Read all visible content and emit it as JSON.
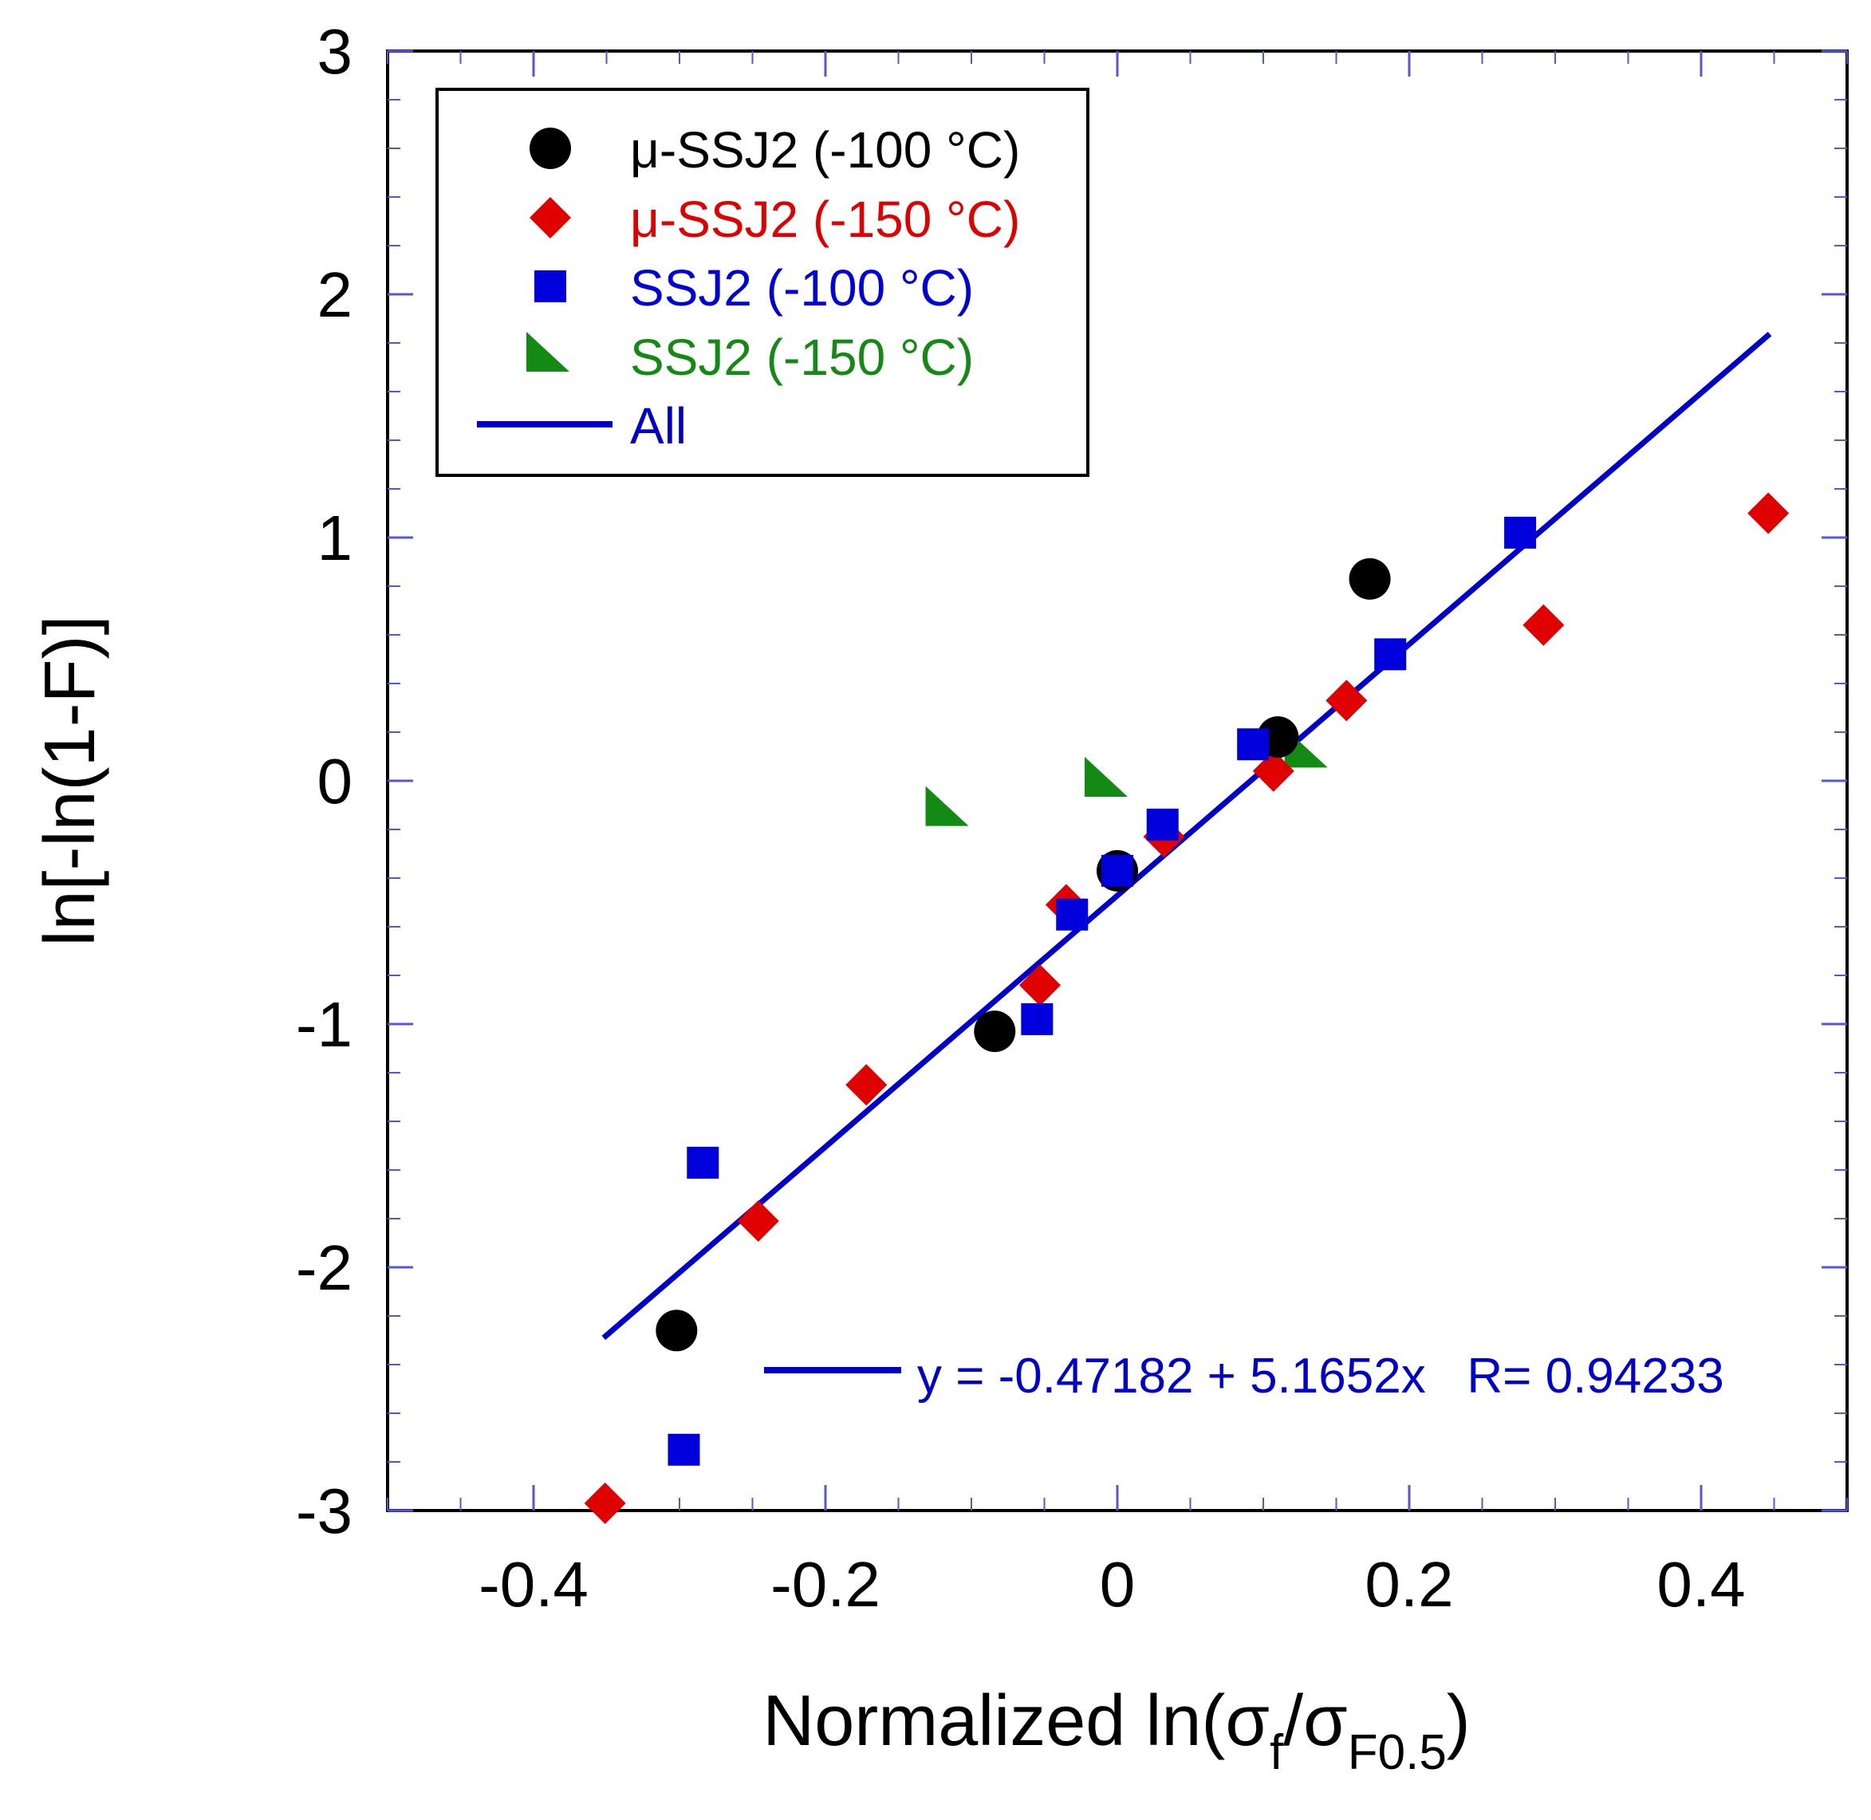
{
  "chart_data": {
    "type": "scatter",
    "xlabel": {
      "main": "Normalized ln(σ",
      "sub1": "f",
      "mid": "/σ",
      "sub2": "F0.5",
      "end": ")"
    },
    "ylabel": "ln[-ln(1-F)]",
    "xlim": [
      -0.5,
      0.5
    ],
    "ylim": [
      -3,
      3
    ],
    "x_ticks": [
      -0.4,
      -0.2,
      0,
      0.2,
      0.4
    ],
    "x_tick_labels": [
      "-0.4",
      "-0.2",
      "0",
      "0.2",
      "0.4"
    ],
    "y_ticks": [
      3,
      2,
      1,
      0,
      -1,
      -2,
      -3
    ],
    "y_tick_labels": [
      "3",
      "2",
      "1",
      "0",
      "-1",
      "-2",
      "-3"
    ],
    "grid": false,
    "legend_position": "top-left",
    "series": [
      {
        "name": "μ-SSJ2 (-100 °C)",
        "marker": "circle",
        "color": "#000000",
        "points": [
          {
            "x": -0.302,
            "y": -2.26
          },
          {
            "x": -0.084,
            "y": -1.03
          },
          {
            "x": 0.0,
            "y": -0.37
          },
          {
            "x": 0.11,
            "y": 0.18
          },
          {
            "x": 0.173,
            "y": 0.83
          }
        ]
      },
      {
        "name": "μ-SSJ2 (-150 °C)",
        "marker": "diamond",
        "color": "#e00000",
        "points": [
          {
            "x": -0.351,
            "y": -2.97
          },
          {
            "x": -0.246,
            "y": -1.81
          },
          {
            "x": -0.172,
            "y": -1.25
          },
          {
            "x": -0.053,
            "y": -0.84
          },
          {
            "x": -0.035,
            "y": -0.51
          },
          {
            "x": 0.0,
            "y": -0.37
          },
          {
            "x": 0.032,
            "y": -0.23
          },
          {
            "x": 0.107,
            "y": 0.04
          },
          {
            "x": 0.157,
            "y": 0.33
          },
          {
            "x": 0.292,
            "y": 0.64
          },
          {
            "x": 0.446,
            "y": 1.1
          }
        ]
      },
      {
        "name": "SSJ2 (-100 °C)",
        "marker": "square",
        "color": "#0000dd",
        "points": [
          {
            "x": -0.297,
            "y": -2.75
          },
          {
            "x": -0.284,
            "y": -1.57
          },
          {
            "x": -0.055,
            "y": -0.98
          },
          {
            "x": -0.031,
            "y": -0.55
          },
          {
            "x": 0.0,
            "y": -0.37
          },
          {
            "x": 0.031,
            "y": -0.18
          },
          {
            "x": 0.093,
            "y": 0.15
          },
          {
            "x": 0.187,
            "y": 0.52
          },
          {
            "x": 0.276,
            "y": 1.02
          }
        ]
      },
      {
        "name": "SSJ2 (-150 °C)",
        "marker": "triangle",
        "color": "#138a13",
        "points": [
          {
            "x": -0.115,
            "y": -0.12
          },
          {
            "x": -0.006,
            "y": 0.0
          },
          {
            "x": 0.131,
            "y": 0.12
          }
        ]
      }
    ],
    "fit": {
      "name": "All",
      "color": "#0000cc",
      "intercept": -0.47182,
      "slope": 5.1652,
      "x_range": [
        -0.352,
        0.447
      ],
      "equation_label": "y = -0.47182 + 5.1652x   R= 0.94233"
    }
  }
}
